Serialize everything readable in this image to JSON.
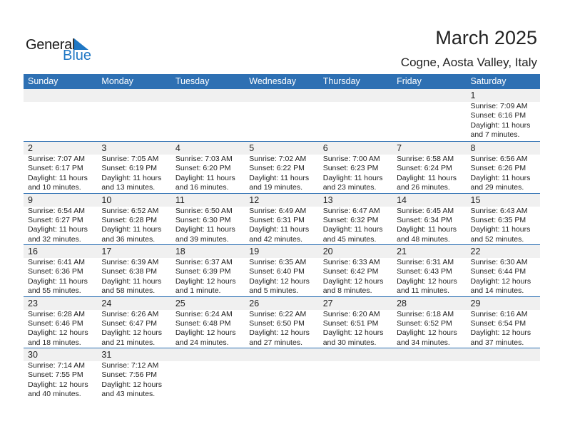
{
  "logo": {
    "general": "General",
    "blue": "Blue"
  },
  "title": "March 2025",
  "location": "Cogne, Aosta Valley, Italy",
  "colors": {
    "header": "#2e70b3",
    "band": "#f0f0f0",
    "logo_blue": "#1f77c4"
  },
  "weekdays": [
    "Sunday",
    "Monday",
    "Tuesday",
    "Wednesday",
    "Thursday",
    "Friday",
    "Saturday"
  ],
  "weeks": [
    [
      null,
      null,
      null,
      null,
      null,
      null,
      {
        "day": "1",
        "sunrise": "Sunrise: 7:09 AM",
        "sunset": "Sunset: 6:16 PM",
        "daylight1": "Daylight: 11 hours",
        "daylight2": "and 7 minutes."
      }
    ],
    [
      {
        "day": "2",
        "sunrise": "Sunrise: 7:07 AM",
        "sunset": "Sunset: 6:17 PM",
        "daylight1": "Daylight: 11 hours",
        "daylight2": "and 10 minutes."
      },
      {
        "day": "3",
        "sunrise": "Sunrise: 7:05 AM",
        "sunset": "Sunset: 6:19 PM",
        "daylight1": "Daylight: 11 hours",
        "daylight2": "and 13 minutes."
      },
      {
        "day": "4",
        "sunrise": "Sunrise: 7:03 AM",
        "sunset": "Sunset: 6:20 PM",
        "daylight1": "Daylight: 11 hours",
        "daylight2": "and 16 minutes."
      },
      {
        "day": "5",
        "sunrise": "Sunrise: 7:02 AM",
        "sunset": "Sunset: 6:22 PM",
        "daylight1": "Daylight: 11 hours",
        "daylight2": "and 19 minutes."
      },
      {
        "day": "6",
        "sunrise": "Sunrise: 7:00 AM",
        "sunset": "Sunset: 6:23 PM",
        "daylight1": "Daylight: 11 hours",
        "daylight2": "and 23 minutes."
      },
      {
        "day": "7",
        "sunrise": "Sunrise: 6:58 AM",
        "sunset": "Sunset: 6:24 PM",
        "daylight1": "Daylight: 11 hours",
        "daylight2": "and 26 minutes."
      },
      {
        "day": "8",
        "sunrise": "Sunrise: 6:56 AM",
        "sunset": "Sunset: 6:26 PM",
        "daylight1": "Daylight: 11 hours",
        "daylight2": "and 29 minutes."
      }
    ],
    [
      {
        "day": "9",
        "sunrise": "Sunrise: 6:54 AM",
        "sunset": "Sunset: 6:27 PM",
        "daylight1": "Daylight: 11 hours",
        "daylight2": "and 32 minutes."
      },
      {
        "day": "10",
        "sunrise": "Sunrise: 6:52 AM",
        "sunset": "Sunset: 6:28 PM",
        "daylight1": "Daylight: 11 hours",
        "daylight2": "and 36 minutes."
      },
      {
        "day": "11",
        "sunrise": "Sunrise: 6:50 AM",
        "sunset": "Sunset: 6:30 PM",
        "daylight1": "Daylight: 11 hours",
        "daylight2": "and 39 minutes."
      },
      {
        "day": "12",
        "sunrise": "Sunrise: 6:49 AM",
        "sunset": "Sunset: 6:31 PM",
        "daylight1": "Daylight: 11 hours",
        "daylight2": "and 42 minutes."
      },
      {
        "day": "13",
        "sunrise": "Sunrise: 6:47 AM",
        "sunset": "Sunset: 6:32 PM",
        "daylight1": "Daylight: 11 hours",
        "daylight2": "and 45 minutes."
      },
      {
        "day": "14",
        "sunrise": "Sunrise: 6:45 AM",
        "sunset": "Sunset: 6:34 PM",
        "daylight1": "Daylight: 11 hours",
        "daylight2": "and 48 minutes."
      },
      {
        "day": "15",
        "sunrise": "Sunrise: 6:43 AM",
        "sunset": "Sunset: 6:35 PM",
        "daylight1": "Daylight: 11 hours",
        "daylight2": "and 52 minutes."
      }
    ],
    [
      {
        "day": "16",
        "sunrise": "Sunrise: 6:41 AM",
        "sunset": "Sunset: 6:36 PM",
        "daylight1": "Daylight: 11 hours",
        "daylight2": "and 55 minutes."
      },
      {
        "day": "17",
        "sunrise": "Sunrise: 6:39 AM",
        "sunset": "Sunset: 6:38 PM",
        "daylight1": "Daylight: 11 hours",
        "daylight2": "and 58 minutes."
      },
      {
        "day": "18",
        "sunrise": "Sunrise: 6:37 AM",
        "sunset": "Sunset: 6:39 PM",
        "daylight1": "Daylight: 12 hours",
        "daylight2": "and 1 minute."
      },
      {
        "day": "19",
        "sunrise": "Sunrise: 6:35 AM",
        "sunset": "Sunset: 6:40 PM",
        "daylight1": "Daylight: 12 hours",
        "daylight2": "and 5 minutes."
      },
      {
        "day": "20",
        "sunrise": "Sunrise: 6:33 AM",
        "sunset": "Sunset: 6:42 PM",
        "daylight1": "Daylight: 12 hours",
        "daylight2": "and 8 minutes."
      },
      {
        "day": "21",
        "sunrise": "Sunrise: 6:31 AM",
        "sunset": "Sunset: 6:43 PM",
        "daylight1": "Daylight: 12 hours",
        "daylight2": "and 11 minutes."
      },
      {
        "day": "22",
        "sunrise": "Sunrise: 6:30 AM",
        "sunset": "Sunset: 6:44 PM",
        "daylight1": "Daylight: 12 hours",
        "daylight2": "and 14 minutes."
      }
    ],
    [
      {
        "day": "23",
        "sunrise": "Sunrise: 6:28 AM",
        "sunset": "Sunset: 6:46 PM",
        "daylight1": "Daylight: 12 hours",
        "daylight2": "and 18 minutes."
      },
      {
        "day": "24",
        "sunrise": "Sunrise: 6:26 AM",
        "sunset": "Sunset: 6:47 PM",
        "daylight1": "Daylight: 12 hours",
        "daylight2": "and 21 minutes."
      },
      {
        "day": "25",
        "sunrise": "Sunrise: 6:24 AM",
        "sunset": "Sunset: 6:48 PM",
        "daylight1": "Daylight: 12 hours",
        "daylight2": "and 24 minutes."
      },
      {
        "day": "26",
        "sunrise": "Sunrise: 6:22 AM",
        "sunset": "Sunset: 6:50 PM",
        "daylight1": "Daylight: 12 hours",
        "daylight2": "and 27 minutes."
      },
      {
        "day": "27",
        "sunrise": "Sunrise: 6:20 AM",
        "sunset": "Sunset: 6:51 PM",
        "daylight1": "Daylight: 12 hours",
        "daylight2": "and 30 minutes."
      },
      {
        "day": "28",
        "sunrise": "Sunrise: 6:18 AM",
        "sunset": "Sunset: 6:52 PM",
        "daylight1": "Daylight: 12 hours",
        "daylight2": "and 34 minutes."
      },
      {
        "day": "29",
        "sunrise": "Sunrise: 6:16 AM",
        "sunset": "Sunset: 6:54 PM",
        "daylight1": "Daylight: 12 hours",
        "daylight2": "and 37 minutes."
      }
    ],
    [
      {
        "day": "30",
        "sunrise": "Sunrise: 7:14 AM",
        "sunset": "Sunset: 7:55 PM",
        "daylight1": "Daylight: 12 hours",
        "daylight2": "and 40 minutes."
      },
      {
        "day": "31",
        "sunrise": "Sunrise: 7:12 AM",
        "sunset": "Sunset: 7:56 PM",
        "daylight1": "Daylight: 12 hours",
        "daylight2": "and 43 minutes."
      },
      null,
      null,
      null,
      null,
      null
    ]
  ]
}
